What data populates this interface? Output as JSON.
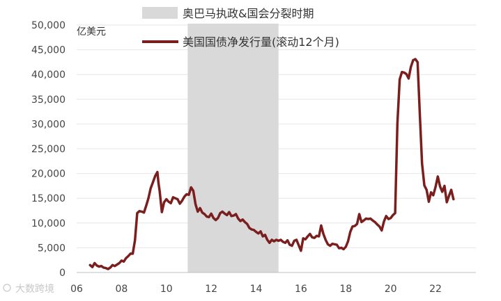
{
  "chart_data": {
    "type": "line",
    "unit_label": "亿美元",
    "ylim": [
      0,
      50000
    ],
    "y_ticks": [
      0,
      5000,
      10000,
      15000,
      20000,
      25000,
      30000,
      35000,
      40000,
      45000,
      50000
    ],
    "y_tick_labels": [
      "0",
      "5,000",
      "10,000",
      "15,000",
      "20,000",
      "25,000",
      "30,000",
      "35,000",
      "40,000",
      "45,000",
      "50,000"
    ],
    "xlim": [
      2006,
      2023.8
    ],
    "x_ticks": [
      2006,
      2008,
      2010,
      2012,
      2014,
      2016,
      2018,
      2020,
      2022
    ],
    "x_tick_labels": [
      "06",
      "08",
      "10",
      "12",
      "14",
      "16",
      "18",
      "20",
      "22"
    ],
    "grid": "horizontal",
    "legend_position": "top",
    "shaded_period": {
      "label": "奥巴马执政&国会分裂时期",
      "start": 2010.95,
      "end": 2015.0,
      "color": "#d9d9d9"
    },
    "series": [
      {
        "name": "美国国债净发行量(滚动12个月)",
        "color": "#7b1e1e",
        "points": [
          [
            2006.6,
            1500
          ],
          [
            2006.7,
            1100
          ],
          [
            2006.8,
            1900
          ],
          [
            2006.9,
            1400
          ],
          [
            2007.0,
            1200
          ],
          [
            2007.1,
            1300
          ],
          [
            2007.2,
            1000
          ],
          [
            2007.3,
            900
          ],
          [
            2007.4,
            700
          ],
          [
            2007.5,
            1000
          ],
          [
            2007.6,
            1500
          ],
          [
            2007.7,
            1300
          ],
          [
            2007.8,
            1600
          ],
          [
            2007.9,
            1900
          ],
          [
            2008.0,
            2400
          ],
          [
            2008.1,
            2200
          ],
          [
            2008.2,
            2900
          ],
          [
            2008.3,
            3300
          ],
          [
            2008.4,
            3800
          ],
          [
            2008.5,
            3800
          ],
          [
            2008.6,
            6500
          ],
          [
            2008.7,
            12000
          ],
          [
            2008.8,
            12400
          ],
          [
            2008.9,
            12300
          ],
          [
            2009.0,
            12100
          ],
          [
            2009.1,
            13500
          ],
          [
            2009.2,
            15000
          ],
          [
            2009.3,
            17000
          ],
          [
            2009.4,
            18200
          ],
          [
            2009.5,
            19500
          ],
          [
            2009.6,
            20300
          ],
          [
            2009.65,
            18000
          ],
          [
            2009.7,
            16500
          ],
          [
            2009.8,
            12200
          ],
          [
            2009.9,
            14200
          ],
          [
            2010.0,
            14800
          ],
          [
            2010.1,
            14300
          ],
          [
            2010.2,
            14000
          ],
          [
            2010.3,
            15200
          ],
          [
            2010.4,
            15000
          ],
          [
            2010.5,
            14800
          ],
          [
            2010.6,
            13900
          ],
          [
            2010.7,
            14500
          ],
          [
            2010.8,
            15300
          ],
          [
            2010.9,
            15800
          ],
          [
            2011.0,
            15700
          ],
          [
            2011.1,
            17200
          ],
          [
            2011.2,
            16500
          ],
          [
            2011.3,
            13800
          ],
          [
            2011.4,
            12300
          ],
          [
            2011.5,
            13000
          ],
          [
            2011.6,
            12100
          ],
          [
            2011.7,
            11800
          ],
          [
            2011.8,
            11300
          ],
          [
            2011.9,
            11200
          ],
          [
            2012.0,
            11900
          ],
          [
            2012.1,
            11000
          ],
          [
            2012.2,
            10600
          ],
          [
            2012.3,
            11000
          ],
          [
            2012.4,
            12000
          ],
          [
            2012.5,
            12300
          ],
          [
            2012.6,
            11900
          ],
          [
            2012.7,
            11600
          ],
          [
            2012.8,
            12200
          ],
          [
            2012.9,
            11400
          ],
          [
            2013.0,
            11500
          ],
          [
            2013.1,
            11800
          ],
          [
            2013.2,
            10900
          ],
          [
            2013.3,
            10400
          ],
          [
            2013.4,
            10700
          ],
          [
            2013.5,
            10200
          ],
          [
            2013.6,
            9800
          ],
          [
            2013.7,
            9000
          ],
          [
            2013.8,
            8700
          ],
          [
            2013.9,
            8600
          ],
          [
            2014.0,
            8200
          ],
          [
            2014.1,
            7900
          ],
          [
            2014.2,
            8300
          ],
          [
            2014.3,
            7300
          ],
          [
            2014.4,
            7600
          ],
          [
            2014.5,
            6600
          ],
          [
            2014.6,
            6000
          ],
          [
            2014.7,
            6600
          ],
          [
            2014.8,
            6300
          ],
          [
            2014.9,
            6600
          ],
          [
            2015.0,
            6400
          ],
          [
            2015.1,
            6600
          ],
          [
            2015.2,
            6200
          ],
          [
            2015.3,
            6000
          ],
          [
            2015.4,
            6500
          ],
          [
            2015.5,
            5600
          ],
          [
            2015.6,
            5400
          ],
          [
            2015.7,
            6400
          ],
          [
            2015.8,
            6600
          ],
          [
            2015.9,
            5500
          ],
          [
            2016.0,
            4400
          ],
          [
            2016.1,
            6900
          ],
          [
            2016.2,
            6700
          ],
          [
            2016.3,
            7300
          ],
          [
            2016.4,
            7800
          ],
          [
            2016.5,
            7100
          ],
          [
            2016.6,
            7000
          ],
          [
            2016.7,
            7400
          ],
          [
            2016.8,
            7300
          ],
          [
            2016.9,
            9500
          ],
          [
            2017.0,
            7800
          ],
          [
            2017.1,
            6600
          ],
          [
            2017.2,
            5700
          ],
          [
            2017.3,
            5400
          ],
          [
            2017.4,
            5800
          ],
          [
            2017.5,
            5700
          ],
          [
            2017.6,
            5600
          ],
          [
            2017.7,
            4900
          ],
          [
            2017.8,
            5000
          ],
          [
            2017.9,
            4700
          ],
          [
            2018.0,
            5200
          ],
          [
            2018.1,
            6300
          ],
          [
            2018.2,
            8200
          ],
          [
            2018.3,
            9300
          ],
          [
            2018.4,
            9400
          ],
          [
            2018.5,
            9800
          ],
          [
            2018.6,
            11800
          ],
          [
            2018.7,
            10200
          ],
          [
            2018.8,
            10500
          ],
          [
            2018.9,
            10900
          ],
          [
            2019.0,
            10800
          ],
          [
            2019.1,
            10900
          ],
          [
            2019.2,
            10500
          ],
          [
            2019.3,
            10200
          ],
          [
            2019.4,
            9700
          ],
          [
            2019.5,
            9300
          ],
          [
            2019.6,
            8500
          ],
          [
            2019.7,
            10300
          ],
          [
            2019.8,
            11400
          ],
          [
            2019.9,
            10800
          ],
          [
            2020.0,
            11000
          ],
          [
            2020.1,
            11600
          ],
          [
            2020.2,
            12000
          ],
          [
            2020.3,
            30000
          ],
          [
            2020.4,
            39000
          ],
          [
            2020.5,
            40500
          ],
          [
            2020.6,
            40400
          ],
          [
            2020.7,
            40100
          ],
          [
            2020.8,
            39200
          ],
          [
            2020.9,
            41500
          ],
          [
            2021.0,
            42900
          ],
          [
            2021.1,
            43100
          ],
          [
            2021.2,
            42500
          ],
          [
            2021.3,
            32000
          ],
          [
            2021.4,
            22000
          ],
          [
            2021.5,
            17600
          ],
          [
            2021.6,
            16700
          ],
          [
            2021.7,
            14300
          ],
          [
            2021.8,
            16200
          ],
          [
            2021.9,
            15600
          ],
          [
            2022.0,
            17300
          ],
          [
            2022.1,
            19400
          ],
          [
            2022.2,
            17400
          ],
          [
            2022.3,
            16300
          ],
          [
            2022.4,
            17500
          ],
          [
            2022.5,
            14200
          ],
          [
            2022.6,
            15500
          ],
          [
            2022.7,
            16700
          ],
          [
            2022.8,
            14800
          ]
        ]
      }
    ]
  },
  "watermark": "大数跨境"
}
